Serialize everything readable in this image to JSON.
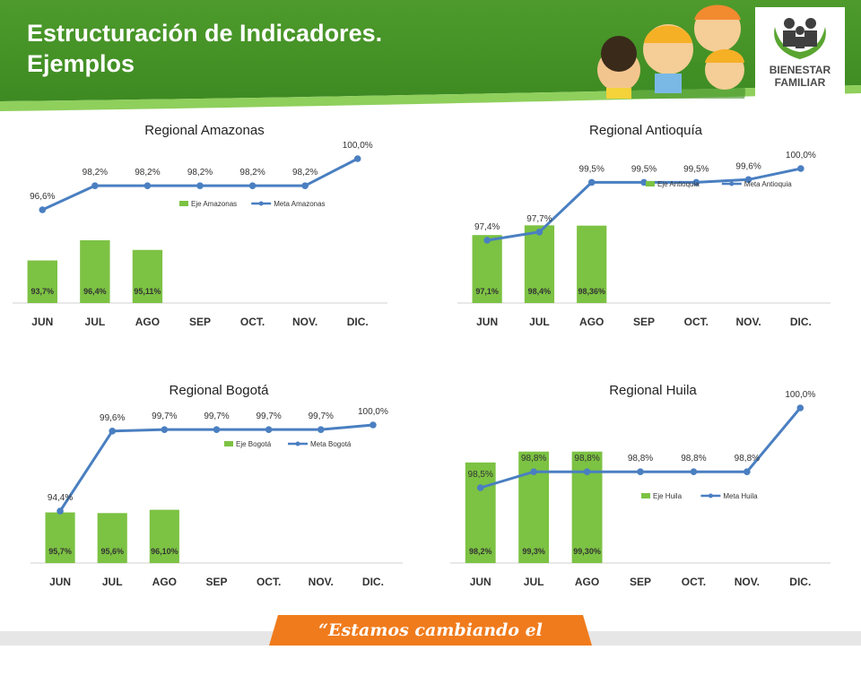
{
  "header": {
    "title_line1": "Estructuración de Indicadores.",
    "title_line2": "Ejemplos"
  },
  "logo": {
    "line1": "BIENESTAR",
    "line2": "FAMILIAR"
  },
  "footer": {
    "slogan": "“Estamos cambiando el mundo”"
  },
  "colors": {
    "bar": "#7cc243",
    "line": "#4a7fc1",
    "text": "#333333",
    "header_green": "#4e9b2c"
  },
  "chart_data": [
    {
      "type": "bar",
      "title": "Regional Amazonas",
      "categories": [
        "JUN",
        "JUL",
        "AGO",
        "SEP",
        "OCT.",
        "NOV.",
        "DIC."
      ],
      "series": [
        {
          "name": "Eje Amazonas",
          "type": "bar",
          "values": [
            93.7,
            96.4,
            95.11,
            null,
            null,
            null,
            null
          ],
          "labels": [
            "93,7%",
            "96,4%",
            "95,11%",
            "",
            "",
            "",
            ""
          ]
        },
        {
          "name": "Meta Amazonas",
          "type": "line",
          "values": [
            96.6,
            98.2,
            98.2,
            98.2,
            98.2,
            98.2,
            100.0
          ],
          "labels": [
            "96,6%",
            "98,2%",
            "98,2%",
            "98,2%",
            "98,2%",
            "98,2%",
            "100,0%"
          ]
        }
      ],
      "legend": "right"
    },
    {
      "type": "bar",
      "title": "Regional Antioquía",
      "categories": [
        "JUN",
        "JUL",
        "AGO",
        "SEP",
        "OCT.",
        "NOV.",
        "DIC."
      ],
      "series": [
        {
          "name": "Eje Antioquia",
          "type": "bar",
          "values": [
            97.1,
            98.4,
            98.36,
            null,
            null,
            null,
            null
          ],
          "labels": [
            "97,1%",
            "98,4%",
            "98,36%",
            "",
            "",
            "",
            ""
          ]
        },
        {
          "name": "Meta Antioquia",
          "type": "line",
          "values": [
            97.4,
            97.7,
            99.5,
            99.5,
            99.5,
            99.6,
            100.0
          ],
          "labels": [
            "97,4%",
            "97,7%",
            "99,5%",
            "99,5%",
            "99,5%",
            "99,6%",
            "100,0%"
          ]
        }
      ],
      "legend": "top-right"
    },
    {
      "type": "bar",
      "title": "Regional Bogotá",
      "categories": [
        "JUN",
        "JUL",
        "AGO",
        "SEP",
        "OCT.",
        "NOV.",
        "DIC."
      ],
      "series": [
        {
          "name": "Eje Bogotá",
          "type": "bar",
          "values": [
            95.7,
            95.6,
            96.1,
            null,
            null,
            null,
            null
          ],
          "labels": [
            "95,7%",
            "95,6%",
            "96,10%",
            "",
            "",
            "",
            ""
          ]
        },
        {
          "name": "Meta Bogotá",
          "type": "line",
          "values": [
            94.4,
            99.6,
            99.7,
            99.7,
            99.7,
            99.7,
            100.0
          ],
          "labels": [
            "94,4%",
            "99,6%",
            "99,7%",
            "99,7%",
            "99,7%",
            "99,7%",
            "100,0%"
          ]
        }
      ],
      "legend": "right"
    },
    {
      "type": "bar",
      "title": "Regional Huila",
      "categories": [
        "JUN",
        "JUL",
        "AGO",
        "SEP",
        "OCT.",
        "NOV.",
        "DIC."
      ],
      "series": [
        {
          "name": "Eje Huila",
          "type": "bar",
          "values": [
            98.2,
            99.3,
            99.3,
            null,
            null,
            null,
            null
          ],
          "labels": [
            "98,2%",
            "99,3%",
            "99,30%",
            "",
            "",
            "",
            ""
          ]
        },
        {
          "name": "Meta Huila",
          "type": "line",
          "values": [
            98.5,
            98.8,
            98.8,
            98.8,
            98.8,
            98.8,
            100.0
          ],
          "labels": [
            "98,5%",
            "98,8%",
            "98,8%",
            "98,8%",
            "98,8%",
            "98,8%",
            "100,0%"
          ]
        }
      ],
      "legend": "right"
    }
  ]
}
